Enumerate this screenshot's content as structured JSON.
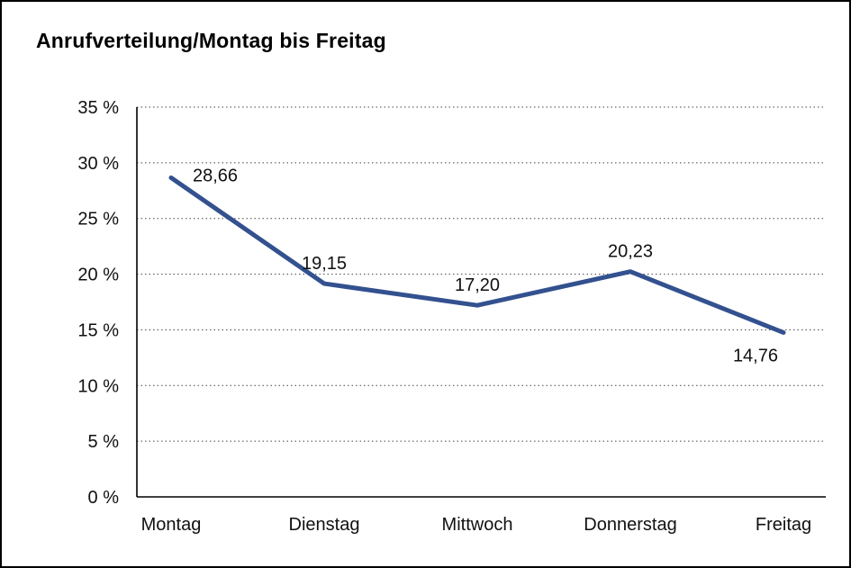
{
  "title": "Anrufverteilung/Montag bis Freitag",
  "chart_data": {
    "type": "line",
    "title": "Anrufverteilung/Montag bis Freitag",
    "categories": [
      "Montag",
      "Dienstag",
      "Mittwoch",
      "Donnerstag",
      "Freitag"
    ],
    "values": [
      28.66,
      19.15,
      17.2,
      20.23,
      14.76
    ],
    "value_labels": [
      "28,66",
      "19,15",
      "17,20",
      "20,23",
      "14,76"
    ],
    "series_name": "Anrufverteilung",
    "xlabel": "",
    "ylabel": "",
    "ylim": [
      0,
      35
    ],
    "ytick_step": 5,
    "ytick_labels": [
      "0 %",
      "5 %",
      "10 %",
      "15 %",
      "20 %",
      "25 %",
      "30 %",
      "35 %"
    ],
    "grid": "dotted-horizontal",
    "legend": "none",
    "line_color": "#33518F",
    "line_width": 5,
    "label_positions": [
      "right",
      "above",
      "above",
      "above",
      "below"
    ]
  }
}
